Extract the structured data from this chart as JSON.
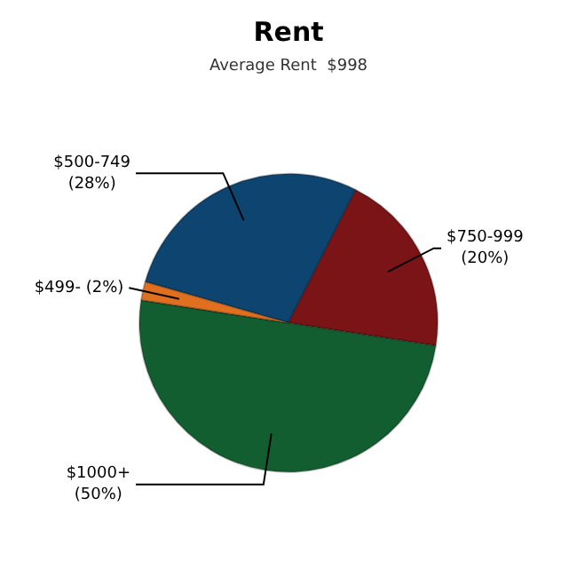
{
  "chart_data": {
    "type": "pie",
    "title": "Rent",
    "subtitle": "Average Rent  $998",
    "categories": [
      "$500-749",
      "$750-999",
      "$1000+",
      "$499-"
    ],
    "values": [
      28,
      20,
      50,
      2
    ],
    "value_labels": [
      "(28%)",
      "(20%)",
      "(50%)",
      "(2%)"
    ],
    "colors": [
      "#0d4470",
      "#7b1416",
      "#125e30",
      "#e07020"
    ]
  }
}
